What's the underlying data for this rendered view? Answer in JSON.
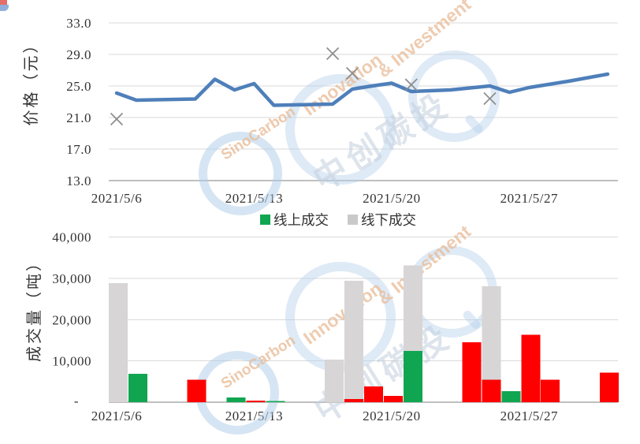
{
  "watermark": {
    "brand_en_1": "SinoCarbon",
    "brand_en_2": "Innovation",
    "brand_en_3": "& Investment",
    "brand_cn": "中创碳投",
    "ring_color": "#B7D3EE",
    "en_text_color": "#E9BC97",
    "cn_text_color": "#C3CFDD"
  },
  "chart_data": [
    {
      "id": "price",
      "type": "line",
      "ylabel": "价格（元）",
      "ylim": [
        13.0,
        33.0
      ],
      "ytick_labels": [
        "33.0",
        "29.0",
        "25.0",
        "21.0",
        "17.0",
        "13.0"
      ],
      "ytick_values": [
        33,
        29,
        25,
        21,
        17,
        13
      ],
      "x_tick_labels": [
        "2021/5/6",
        "2021/5/13",
        "2021/5/20",
        "2021/5/27"
      ],
      "x_tick_days": [
        0,
        7,
        14,
        21
      ],
      "days_span": 25,
      "grid": true,
      "line_series": {
        "name": "价格",
        "color": "#4E7FBA",
        "dates_daily": [
          "2021/5/6",
          "2021/5/7",
          "2021/5/8",
          "2021/5/9",
          "2021/5/10",
          "2021/5/11",
          "2021/5/12",
          "2021/5/13",
          "2021/5/14",
          "2021/5/15",
          "2021/5/16",
          "2021/5/17",
          "2021/5/18",
          "2021/5/19",
          "2021/5/20",
          "2021/5/21",
          "2021/5/22",
          "2021/5/23",
          "2021/5/24",
          "2021/5/25",
          "2021/5/26",
          "2021/5/27",
          "2021/5/28",
          "2021/5/29",
          "2021/5/30",
          "2021/5/31"
        ],
        "values_daily": [
          24.1,
          23.2,
          23.25,
          23.3,
          23.35,
          25.85,
          24.5,
          25.3,
          22.55,
          22.6,
          22.65,
          22.7,
          24.6,
          25.0,
          25.35,
          24.3,
          24.4,
          24.5,
          24.75,
          25.0,
          24.2,
          24.8,
          25.2,
          25.6,
          26.05,
          26.5
        ]
      },
      "scatter_series": {
        "marker": "x",
        "color": "#8C8C8C",
        "points": [
          {
            "date": "2021/5/6",
            "day": 0,
            "value": 20.8
          },
          {
            "date": "2021/5/17",
            "day": 11,
            "value": 29.1
          },
          {
            "date": "2021/5/18",
            "day": 12,
            "value": 26.6
          },
          {
            "date": "2021/5/21",
            "day": 15,
            "value": 25.15
          },
          {
            "date": "2021/5/25",
            "day": 19,
            "value": 23.4
          }
        ]
      }
    },
    {
      "id": "volume",
      "type": "bar",
      "ylabel": "成交量（吨）",
      "ylim": [
        0,
        40000
      ],
      "ytick_labels": [
        "40,000",
        "30,000",
        "20,000",
        "10,000",
        "-"
      ],
      "ytick_values": [
        40000,
        30000,
        20000,
        10000,
        0
      ],
      "x_tick_labels": [
        "2021/5/6",
        "2021/5/13",
        "2021/5/20",
        "2021/5/27"
      ],
      "x_tick_days": [
        0,
        7,
        14,
        21
      ],
      "days_span": 25,
      "grid": true,
      "legend": [
        {
          "label": "线上成交",
          "color": "#10A651"
        },
        {
          "label": "线下成交",
          "color": "#C9C9C9"
        }
      ],
      "series_colors": {
        "green": "#10A651",
        "gray": "#D7D5D5",
        "red": "#FE0000"
      },
      "bars": [
        {
          "date": "2021/5/6",
          "day": 0,
          "color": "gray",
          "value": 28800
        },
        {
          "date": "2021/5/7",
          "day": 1,
          "color": "green",
          "value": 6900
        },
        {
          "date": "2021/5/10",
          "day": 4,
          "color": "red",
          "value": 5400
        },
        {
          "date": "2021/5/12",
          "day": 6,
          "color": "green",
          "value": 1100
        },
        {
          "date": "2021/5/13",
          "day": 7,
          "color": "red",
          "value": 400
        },
        {
          "date": "2021/5/14",
          "day": 8,
          "color": "green",
          "value": 300
        },
        {
          "date": "2021/5/17",
          "day": 11,
          "color": "gray",
          "value": 10300
        },
        {
          "date": "2021/5/18",
          "day": 12,
          "color": "gray",
          "value": 29400
        },
        {
          "date": "2021/5/18",
          "day": 12,
          "color": "red",
          "value": 800
        },
        {
          "date": "2021/5/19",
          "day": 13,
          "color": "red",
          "value": 3800
        },
        {
          "date": "2021/5/20",
          "day": 14,
          "color": "red",
          "value": 1500
        },
        {
          "date": "2021/5/21",
          "day": 15,
          "color": "gray",
          "value": 33100
        },
        {
          "date": "2021/5/21",
          "day": 15,
          "color": "green",
          "value": 12400
        },
        {
          "date": "2021/5/24",
          "day": 18,
          "color": "red",
          "value": 14500
        },
        {
          "date": "2021/5/25",
          "day": 19,
          "color": "gray",
          "value": 28100
        },
        {
          "date": "2021/5/25",
          "day": 19,
          "color": "red",
          "value": 5400
        },
        {
          "date": "2021/5/26",
          "day": 20,
          "color": "green",
          "value": 2700
        },
        {
          "date": "2021/5/27",
          "day": 21,
          "color": "red",
          "value": 16300
        },
        {
          "date": "2021/5/28",
          "day": 22,
          "color": "red",
          "value": 5400
        },
        {
          "date": "2021/5/31",
          "day": 25,
          "color": "red",
          "value": 7200
        }
      ]
    }
  ]
}
